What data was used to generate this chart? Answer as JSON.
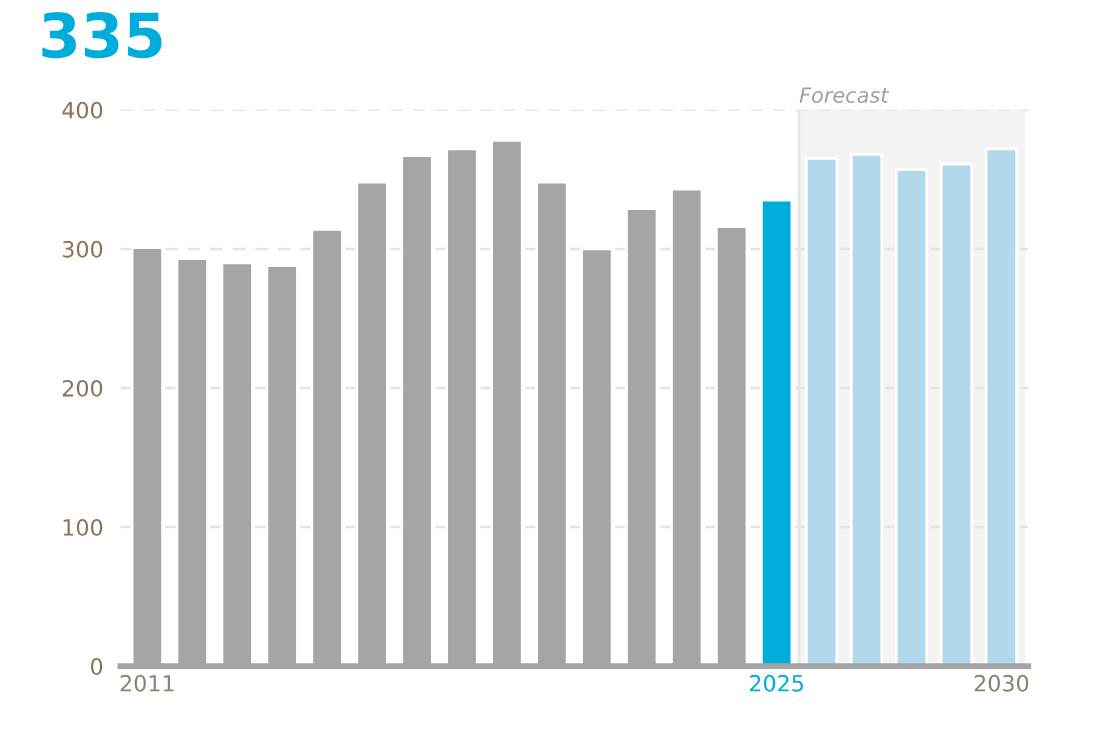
{
  "chart_data": {
    "type": "bar",
    "title": "335",
    "categories": [
      "2011",
      null,
      null,
      null,
      null,
      null,
      null,
      null,
      null,
      null,
      null,
      null,
      null,
      null,
      "2025",
      null,
      null,
      null,
      null,
      "2030"
    ],
    "values": [
      301,
      293,
      290,
      288,
      314,
      348,
      367,
      372,
      378,
      348,
      300,
      329,
      343,
      316,
      335,
      365,
      368,
      357,
      361,
      372
    ],
    "colors": [
      "#a5a5a7",
      "#a5a5a7",
      "#a5a5a7",
      "#a5a5a7",
      "#a5a5a7",
      "#a5a5a7",
      "#a5a5a7",
      "#a5a5a7",
      "#a5a5a7",
      "#a5a5a7",
      "#a5a5a7",
      "#a5a5a7",
      "#a5a5a7",
      "#a5a5a7",
      "#00acd9",
      "#b2d8eb",
      "#b2d8eb",
      "#b2d8eb",
      "#b2d8eb",
      "#b2d8eb"
    ],
    "ylim": [
      0,
      400
    ],
    "yticks": [
      0,
      100,
      200,
      300,
      400
    ],
    "grid": "y",
    "bands": [
      {
        "axis": "x",
        "from": "2025",
        "to": "2030",
        "label": "Forecast",
        "color": "#f4f4f4"
      }
    ]
  }
}
